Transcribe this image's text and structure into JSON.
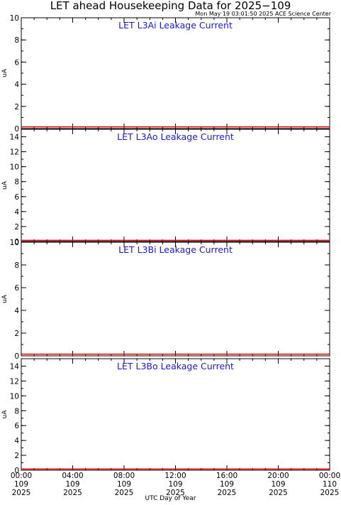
{
  "header": {
    "title": "LET ahead Housekeeping Data for 2025−109",
    "subtitle": "Mon May 19 03:01:50 2025 ACE Science Center"
  },
  "colors": {
    "panel_title": "#1a1ac8",
    "series": "#e00000",
    "frame": "#000000"
  },
  "chart_data": [
    {
      "type": "line",
      "title": "LET L3Ai Leakage Current",
      "ylabel": "uA",
      "ylim": [
        0,
        10
      ],
      "yticks": [
        0,
        2,
        4,
        6,
        8,
        10
      ],
      "xlim": [
        "00:00",
        "24:00"
      ],
      "series": [
        {
          "x": [
            "00:00",
            "24:00"
          ],
          "values": [
            0.15,
            0.15
          ]
        }
      ]
    },
    {
      "type": "line",
      "title": "LET L3Ao Leakage Current",
      "ylabel": "uA",
      "ylim": [
        0,
        15
      ],
      "yticks": [
        0,
        2,
        4,
        6,
        8,
        10,
        12,
        14
      ],
      "xlim": [
        "00:00",
        "24:00"
      ],
      "series": [
        {
          "x": [
            "00:00",
            "24:00"
          ],
          "values": [
            0.15,
            0.15
          ]
        }
      ]
    },
    {
      "type": "line",
      "title": "LET L3Bi Leakage Current",
      "ylabel": "uA",
      "ylim": [
        0,
        10
      ],
      "yticks": [
        0,
        2,
        4,
        6,
        8,
        10
      ],
      "xlim": [
        "00:00",
        "24:00"
      ],
      "series": [
        {
          "x": [
            "00:00",
            "24:00"
          ],
          "values": [
            0.15,
            0.15
          ]
        }
      ]
    },
    {
      "type": "line",
      "title": "LET L3Bo Leakage Current",
      "ylabel": "uA",
      "ylim": [
        0,
        15
      ],
      "yticks": [
        0,
        2,
        4,
        6,
        8,
        10,
        12,
        14
      ],
      "xlim": [
        "00:00",
        "24:00"
      ],
      "series": [
        {
          "x": [
            "00:00",
            "24:00"
          ],
          "values": [
            0.15,
            0.15
          ]
        }
      ]
    }
  ],
  "xaxis": {
    "label": "UTC Day of Year",
    "ticks": [
      {
        "time": "00:00",
        "day": "109",
        "year": "2025"
      },
      {
        "time": "04:00",
        "day": "109",
        "year": "2025"
      },
      {
        "time": "08:00",
        "day": "109",
        "year": "2025"
      },
      {
        "time": "12:00",
        "day": "109",
        "year": "2025"
      },
      {
        "time": "16:00",
        "day": "109",
        "year": "2025"
      },
      {
        "time": "20:00",
        "day": "109",
        "year": "2025"
      },
      {
        "time": "00:00",
        "day": "110",
        "year": "2025"
      }
    ],
    "tick_hours": [
      0,
      4,
      8,
      12,
      16,
      20,
      24
    ],
    "minor_tick_hours": 1
  }
}
